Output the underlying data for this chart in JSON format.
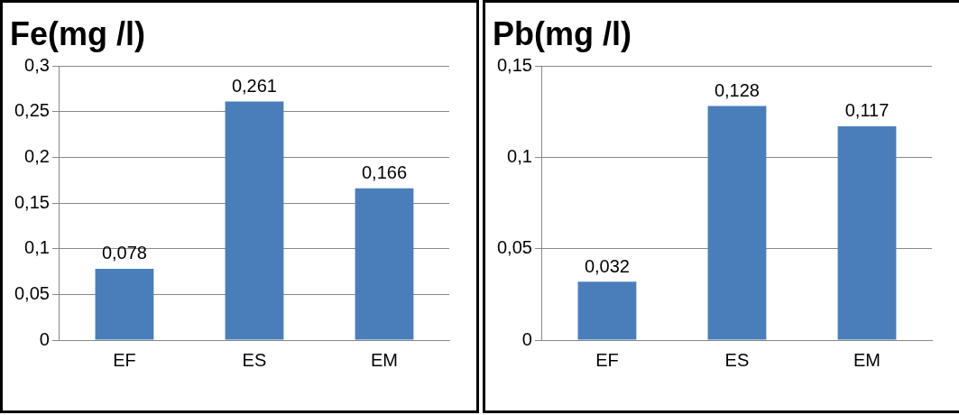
{
  "chart_data": [
    {
      "type": "bar",
      "title": "Fe(mg /l)",
      "categories": [
        "EF",
        "ES",
        "EM"
      ],
      "values": [
        0.078,
        0.261,
        0.166
      ],
      "color": "#4a7ebb",
      "value_labels": [
        "0,078",
        "0,261",
        "0,166"
      ],
      "ylim": [
        0,
        0.3
      ],
      "yticks": [
        {
          "value": 0,
          "label": "0"
        },
        {
          "value": 0.05,
          "label": "0,05"
        },
        {
          "value": 0.1,
          "label": "0,1"
        },
        {
          "value": 0.15,
          "label": "0,15"
        },
        {
          "value": 0.2,
          "label": "0,2"
        },
        {
          "value": 0.25,
          "label": "0,25"
        },
        {
          "value": 0.3,
          "label": "0,3"
        }
      ],
      "grid": "y"
    },
    {
      "type": "bar",
      "title": "Pb(mg /l)",
      "categories": [
        "EF",
        "ES",
        "EM"
      ],
      "values": [
        0.032,
        0.128,
        0.117
      ],
      "color": "#4a7ebb",
      "value_labels": [
        "0,032",
        "0,128",
        "0,117"
      ],
      "ylim": [
        0,
        0.15
      ],
      "yticks": [
        {
          "value": 0,
          "label": "0"
        },
        {
          "value": 0.05,
          "label": "0,05"
        },
        {
          "value": 0.1,
          "label": "0,1"
        },
        {
          "value": 0.15,
          "label": "0,15"
        }
      ],
      "grid": "y"
    }
  ]
}
